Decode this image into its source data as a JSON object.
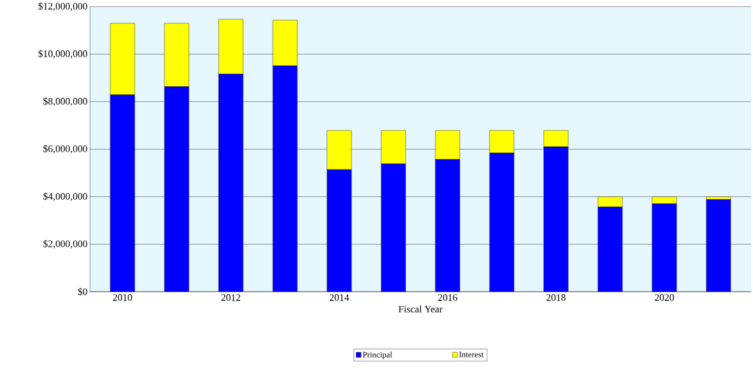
{
  "chart_data": {
    "type": "bar",
    "stacked": true,
    "xlabel": "Fiscal Year",
    "categories": [
      "2010",
      null,
      "2012",
      null,
      "2014",
      null,
      "2016",
      null,
      "2018",
      null,
      "2020",
      null
    ],
    "series": [
      {
        "name": "Principal",
        "color": "#0000ff",
        "values": [
          8290000,
          8630000,
          9160000,
          9510000,
          5140000,
          5380000,
          5570000,
          5840000,
          6100000,
          3570000,
          3700000,
          3880000
        ]
      },
      {
        "name": "Interest",
        "color": "#ffff00",
        "values": [
          3010000,
          2670000,
          2310000,
          1920000,
          1650000,
          1410000,
          1220000,
          950000,
          690000,
          430000,
          300000,
          120000
        ]
      }
    ],
    "ylim": [
      0,
      12000000
    ],
    "yticks": [
      {
        "value": 0,
        "label": "$0"
      },
      {
        "value": 2000000,
        "label": "$2,000,000"
      },
      {
        "value": 4000000,
        "label": "$4,000,000"
      },
      {
        "value": 6000000,
        "label": "$6,000,000"
      },
      {
        "value": 8000000,
        "label": "$8,000,000"
      },
      {
        "value": 10000000,
        "label": "$10,000,000"
      },
      {
        "value": 12000000,
        "label": "$12,000,000"
      }
    ],
    "grid": "y",
    "legend": "bottom"
  }
}
